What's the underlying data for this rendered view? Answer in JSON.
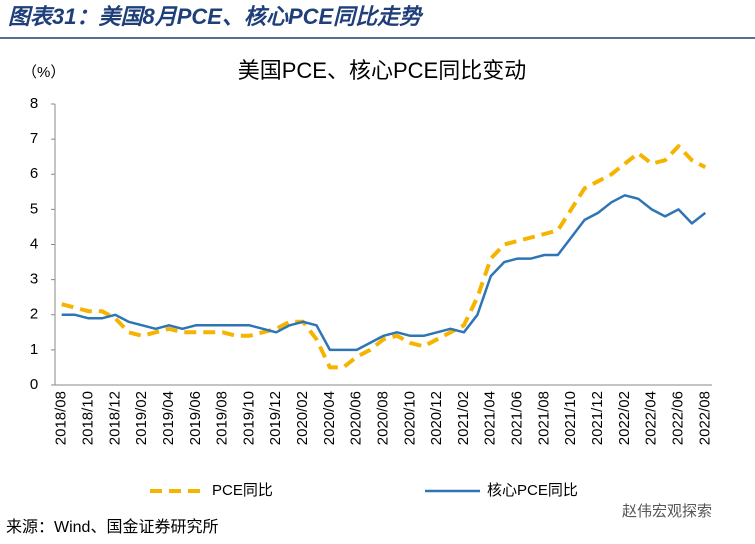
{
  "header": "图表31：美国8月PCE、核心PCE同比走势",
  "source": "来源：Wind、国金证券研究所",
  "watermark": "赵伟宏观探索",
  "chart_data": {
    "type": "line",
    "title": "美国PCE、核心PCE同比变动",
    "y_label": "（%）",
    "categories": [
      "2018/08",
      null,
      "2018/10",
      null,
      "2018/12",
      null,
      "2019/02",
      null,
      "2019/04",
      null,
      "2019/06",
      null,
      "2019/08",
      null,
      "2019/10",
      null,
      "2019/12",
      null,
      "2020/02",
      null,
      "2020/04",
      null,
      "2020/06",
      null,
      "2020/08",
      null,
      "2020/10",
      null,
      "2020/12",
      null,
      "2021/02",
      null,
      "2021/04",
      null,
      "2021/06",
      null,
      "2021/08",
      null,
      "2021/10",
      null,
      "2021/12",
      null,
      "2022/02",
      null,
      "2022/04",
      null,
      "2022/06",
      null,
      "2022/08"
    ],
    "series": [
      {
        "name": "PCE同比",
        "color": "#f4b400",
        "dash": true,
        "values": [
          2.3,
          2.2,
          2.1,
          2.1,
          1.9,
          1.5,
          1.4,
          1.5,
          1.6,
          1.5,
          1.5,
          1.5,
          1.5,
          1.4,
          1.4,
          1.5,
          1.6,
          1.8,
          1.8,
          1.3,
          0.5,
          0.5,
          0.8,
          1.0,
          1.3,
          1.4,
          1.2,
          1.1,
          1.3,
          1.5,
          1.7,
          2.5,
          3.6,
          4.0,
          4.1,
          4.2,
          4.3,
          4.4,
          5.0,
          5.6,
          5.8,
          6.0,
          6.3,
          6.6,
          6.3,
          6.4,
          6.8,
          6.4,
          6.2
        ]
      },
      {
        "name": "核心PCE同比",
        "color": "#2e75b6",
        "dash": false,
        "values": [
          2.0,
          2.0,
          1.9,
          1.9,
          2.0,
          1.8,
          1.7,
          1.6,
          1.7,
          1.6,
          1.7,
          1.7,
          1.7,
          1.7,
          1.7,
          1.6,
          1.5,
          1.7,
          1.8,
          1.7,
          1.0,
          1.0,
          1.0,
          1.2,
          1.4,
          1.5,
          1.4,
          1.4,
          1.5,
          1.6,
          1.5,
          2.0,
          3.1,
          3.5,
          3.6,
          3.6,
          3.7,
          3.7,
          4.2,
          4.7,
          4.9,
          5.2,
          5.4,
          5.3,
          5.0,
          4.8,
          5.0,
          4.6,
          4.9
        ]
      }
    ],
    "ylim": [
      0,
      8
    ],
    "yticks": [
      0,
      1,
      2,
      3,
      4,
      5,
      6,
      7,
      8
    ],
    "grid": false,
    "legend": "bottom"
  }
}
